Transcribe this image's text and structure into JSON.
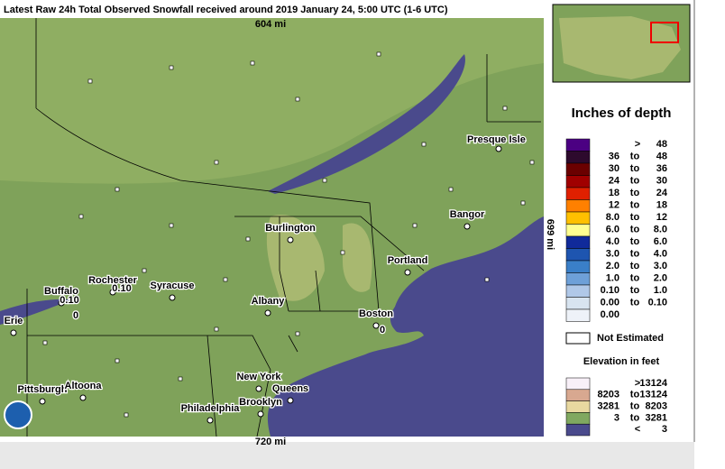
{
  "header": {
    "title": "Latest Raw 24h Total Observed Snowfall received around 2019 January 24, 5:00 UTC (1-6 UTC)"
  },
  "scale": {
    "top": "604 mi",
    "bottom": "720 mi",
    "right": "699 mi"
  },
  "cities": [
    "Presque Isle",
    "Bangor",
    "Burlington",
    "Portland",
    "Rochester",
    "Syracuse",
    "Buffalo",
    "Albany",
    "Boston",
    "Erie",
    "New York",
    "Queens",
    "Pittsburgh",
    "Altoona",
    "Brooklyn",
    "Philadelphia"
  ],
  "observations": [
    "0.10",
    "0.10",
    "0",
    "0"
  ],
  "legend": {
    "title": "Inches of depth",
    "rows": [
      {
        "lo": ">",
        "hi": "48"
      },
      {
        "lo": "36",
        "to": "to",
        "hi": "48"
      },
      {
        "lo": "30",
        "to": "to",
        "hi": "36"
      },
      {
        "lo": "24",
        "to": "to",
        "hi": "30"
      },
      {
        "lo": "18",
        "to": "to",
        "hi": "24"
      },
      {
        "lo": "12",
        "to": "to",
        "hi": "18"
      },
      {
        "lo": "8.0",
        "to": "to",
        "hi": "12"
      },
      {
        "lo": "6.0",
        "to": "to",
        "hi": "8.0"
      },
      {
        "lo": "4.0",
        "to": "to",
        "hi": "6.0"
      },
      {
        "lo": "3.0",
        "to": "to",
        "hi": "4.0"
      },
      {
        "lo": "2.0",
        "to": "to",
        "hi": "3.0"
      },
      {
        "lo": "1.0",
        "to": "to",
        "hi": "2.0"
      },
      {
        "lo": "0.10",
        "to": "to",
        "hi": "1.0"
      },
      {
        "lo": "0.00",
        "to": "to",
        "hi": "0.10"
      },
      {
        "lo": "0.00"
      }
    ],
    "not_estimated": "Not Estimated"
  },
  "elevation": {
    "title": "Elevation in feet",
    "rows": [
      {
        "lo": ">",
        "hi": "13124"
      },
      {
        "lo": "8203",
        "to": "to",
        "hi": "13124"
      },
      {
        "lo": "3281",
        "to": "to",
        "hi": "8203"
      },
      {
        "lo": "3",
        "to": "to",
        "hi": "3281"
      },
      {
        "lo": "<",
        "hi": "3"
      }
    ]
  }
}
